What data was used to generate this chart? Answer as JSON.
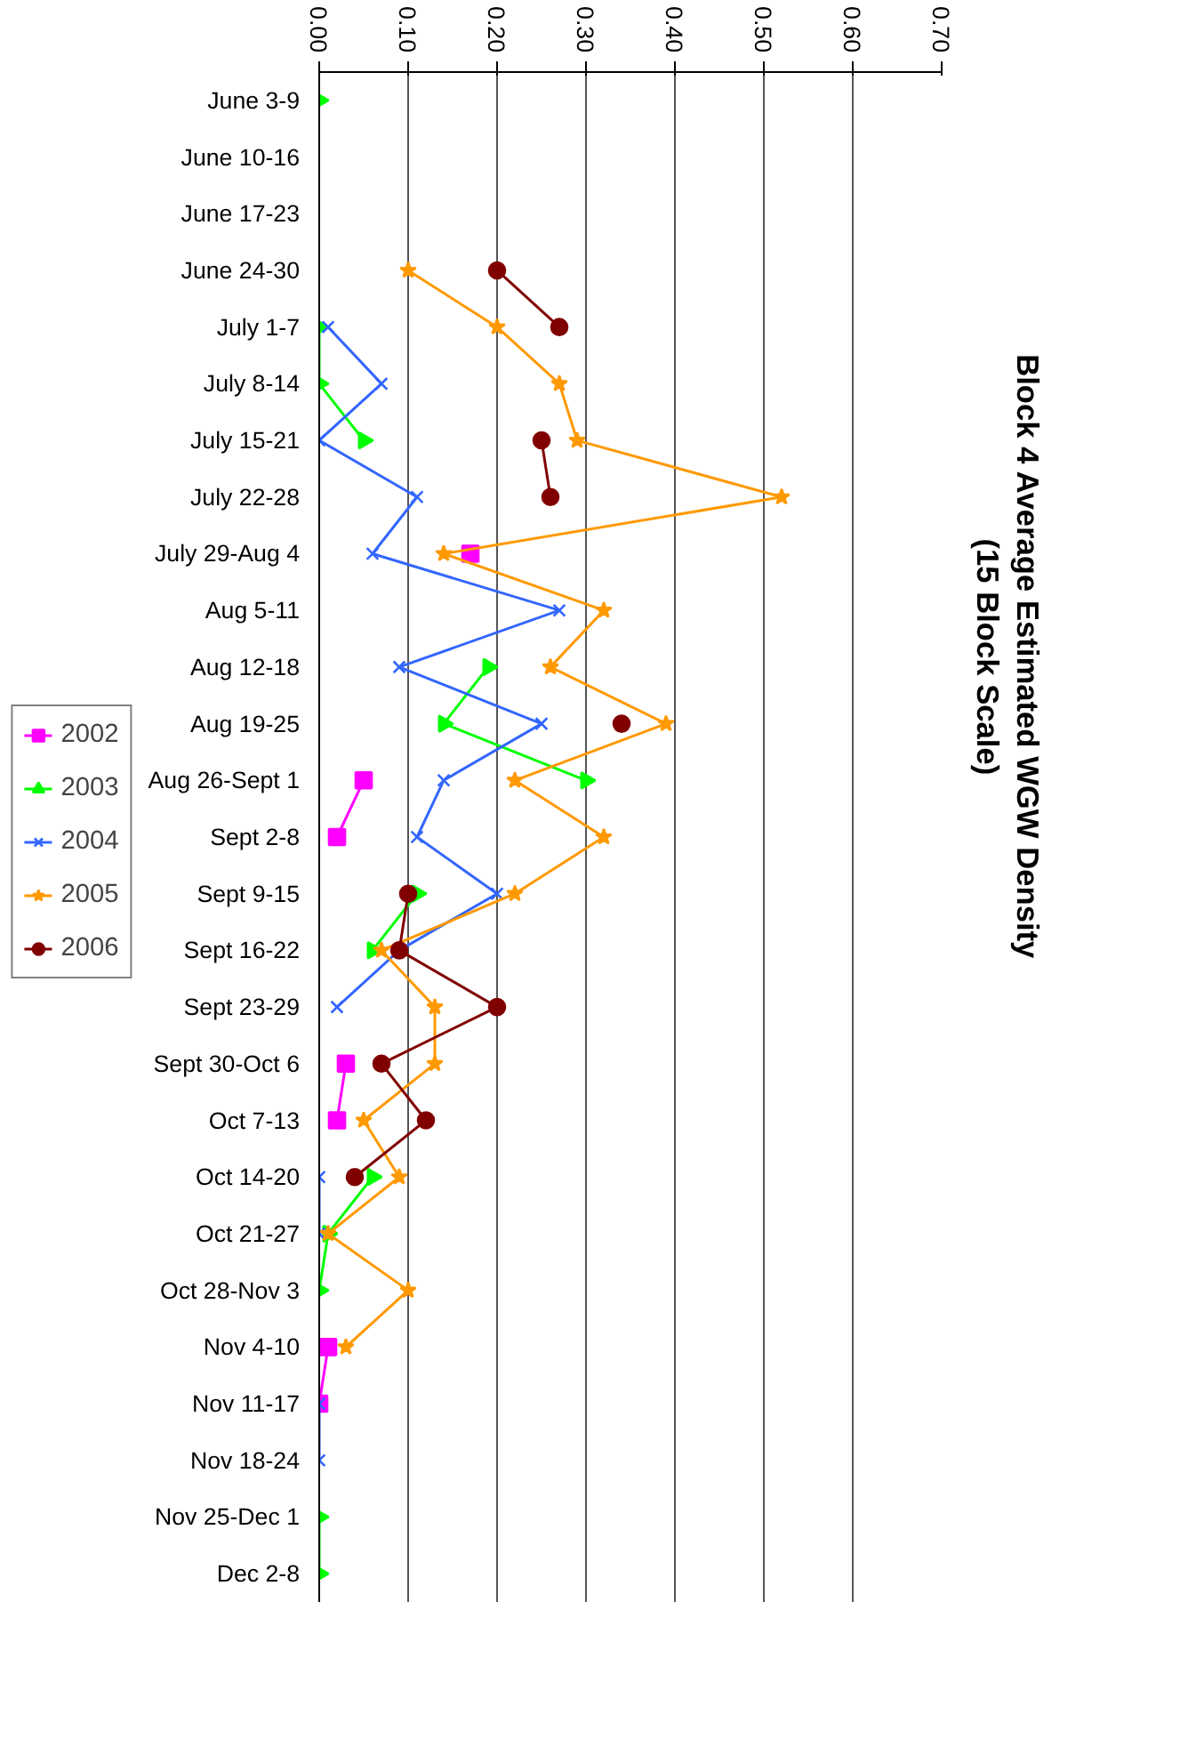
{
  "chart_data": {
    "type": "line",
    "orientation": "horizontal",
    "title": "Block 4 Average Estimated WGW Density",
    "subtitle": "(15 Block Scale)",
    "categories": [
      "June 3-9",
      "June 10-16",
      "June 17-23",
      "June 24-30",
      "July 1-7",
      "July 8-14",
      "July 15-21",
      "July 22-28",
      "July 29-Aug 4",
      "Aug 5-11",
      "Aug 12-18",
      "Aug 19-25",
      "Aug 26-Sept 1",
      "Sept 2-8",
      "Sept 9-15",
      "Sept 16-22",
      "Sept 23-29",
      "Sept 30-Oct 6",
      "Oct 7-13",
      "Oct 14-20",
      "Oct 21-27",
      "Oct 28-Nov 3",
      "Nov 4-10",
      "Nov 11-17",
      "Nov 18-24",
      "Nov 25-Dec 1",
      "Dec 2-8"
    ],
    "xlim": [
      0,
      0.7
    ],
    "xticks": [
      {
        "value": 0,
        "label": "0.00"
      },
      {
        "value": 0.1,
        "label": "0.10"
      },
      {
        "value": 0.2,
        "label": "0.20"
      },
      {
        "value": 0.3,
        "label": "0.30"
      },
      {
        "value": 0.4,
        "label": "0.40"
      },
      {
        "value": 0.5,
        "label": "0.50"
      },
      {
        "value": 0.6,
        "label": "0.60"
      },
      {
        "value": 0.7,
        "label": "0.70"
      }
    ],
    "grid": "x",
    "legend": "left",
    "series": [
      {
        "name": "2002",
        "color": "#ff00ff",
        "marker": "square",
        "values": [
          null,
          null,
          null,
          null,
          null,
          null,
          null,
          null,
          0.17,
          null,
          null,
          null,
          0.05,
          0.02,
          null,
          null,
          null,
          0.03,
          0.02,
          null,
          null,
          null,
          0.01,
          0.0,
          null,
          null,
          null
        ]
      },
      {
        "name": "2003",
        "color": "#00ff00",
        "marker": "triangle",
        "values": [
          0.0,
          null,
          null,
          null,
          0.0,
          0.0,
          0.05,
          null,
          null,
          null,
          0.19,
          0.14,
          0.3,
          null,
          0.11,
          0.06,
          null,
          null,
          null,
          0.06,
          0.01,
          0.0,
          null,
          null,
          null,
          0.0,
          0.0
        ]
      },
      {
        "name": "2004",
        "color": "#3366ff",
        "marker": "cross",
        "values": [
          null,
          null,
          null,
          null,
          0.01,
          0.07,
          0.0,
          0.11,
          0.06,
          0.27,
          0.09,
          0.25,
          0.14,
          0.11,
          0.2,
          0.09,
          0.02,
          null,
          null,
          0.0,
          0.0,
          null,
          null,
          0.0,
          0.0,
          null,
          null
        ]
      },
      {
        "name": "2005",
        "color": "#ff9900",
        "marker": "star",
        "values": [
          null,
          null,
          null,
          0.1,
          0.2,
          0.27,
          0.29,
          0.52,
          0.14,
          0.32,
          0.26,
          0.39,
          0.22,
          0.32,
          0.22,
          0.07,
          0.13,
          0.13,
          0.05,
          0.09,
          0.01,
          0.1,
          0.03,
          null,
          null,
          null,
          null
        ]
      },
      {
        "name": "2006",
        "color": "#800000",
        "marker": "circle",
        "values": [
          null,
          null,
          null,
          0.2,
          0.27,
          null,
          0.25,
          0.26,
          null,
          null,
          null,
          0.34,
          null,
          null,
          0.1,
          0.09,
          0.2,
          0.07,
          0.12,
          0.04,
          null,
          null,
          null,
          null,
          null,
          null,
          null
        ]
      }
    ]
  }
}
